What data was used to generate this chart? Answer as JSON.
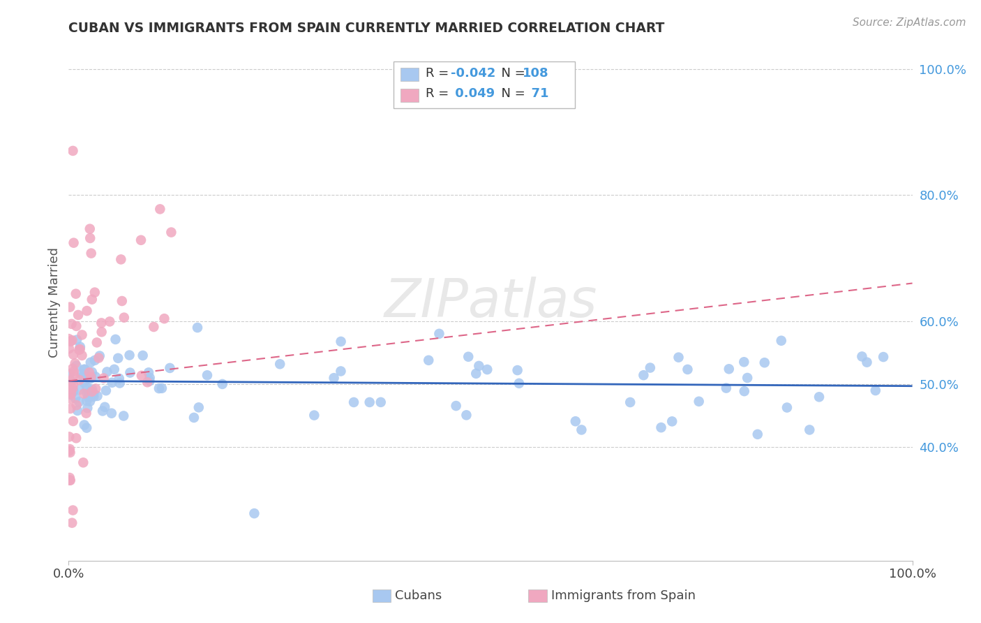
{
  "title": "CUBAN VS IMMIGRANTS FROM SPAIN CURRENTLY MARRIED CORRELATION CHART",
  "source": "Source: ZipAtlas.com",
  "ylabel": "Currently Married",
  "x_min": 0.0,
  "x_max": 1.0,
  "y_min": 0.22,
  "y_max": 1.04,
  "y_ticks": [
    0.4,
    0.5,
    0.6,
    0.8,
    1.0
  ],
  "y_tick_labels": [
    "40.0%",
    "50.0%",
    "60.0%",
    "80.0%",
    "100.0%"
  ],
  "legend_r_cubans": "-0.042",
  "legend_n_cubans": "108",
  "legend_r_spain": "0.049",
  "legend_n_spain": "71",
  "cubans_color": "#a8c8f0",
  "spain_color": "#f0a8c0",
  "cubans_line_color": "#3366bb",
  "spain_line_color": "#dd6688",
  "background_color": "#ffffff",
  "grid_color": "#cccccc",
  "watermark": "ZIPatlas",
  "legend_text_color": "#4499dd",
  "legend_label_color": "#333333"
}
